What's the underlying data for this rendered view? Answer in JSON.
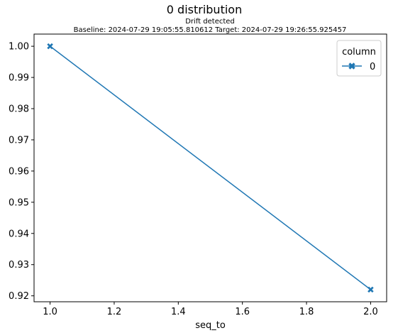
{
  "chart_data": {
    "type": "line",
    "title": "0 distribution",
    "subtitle_lines": [
      "Drift detected",
      "Baseline: 2024-07-29 19:05:55.810612 Target: 2024-07-29 19:26:55.925457"
    ],
    "xlabel": "seq_to",
    "ylabel": "",
    "xlim": [
      0.95,
      2.05
    ],
    "ylim": [
      0.9181,
      1.0039
    ],
    "x_ticks": [
      1.0,
      1.2,
      1.4,
      1.6,
      1.8,
      2.0
    ],
    "x_tick_labels": [
      "1.0",
      "1.2",
      "1.4",
      "1.6",
      "1.8",
      "2.0"
    ],
    "y_ticks": [
      0.92,
      0.93,
      0.94,
      0.95,
      0.96,
      0.97,
      0.98,
      0.99,
      1.0
    ],
    "y_tick_labels": [
      "0.92",
      "0.93",
      "0.94",
      "0.95",
      "0.96",
      "0.97",
      "0.98",
      "0.99",
      "1.00"
    ],
    "grid": false,
    "legend": {
      "title": "column",
      "placement": "top-right"
    },
    "series": [
      {
        "name": "0",
        "color": "#1f77b4",
        "marker": "X",
        "x": [
          1.0,
          2.0
        ],
        "y": [
          1.0,
          0.922
        ]
      }
    ]
  }
}
